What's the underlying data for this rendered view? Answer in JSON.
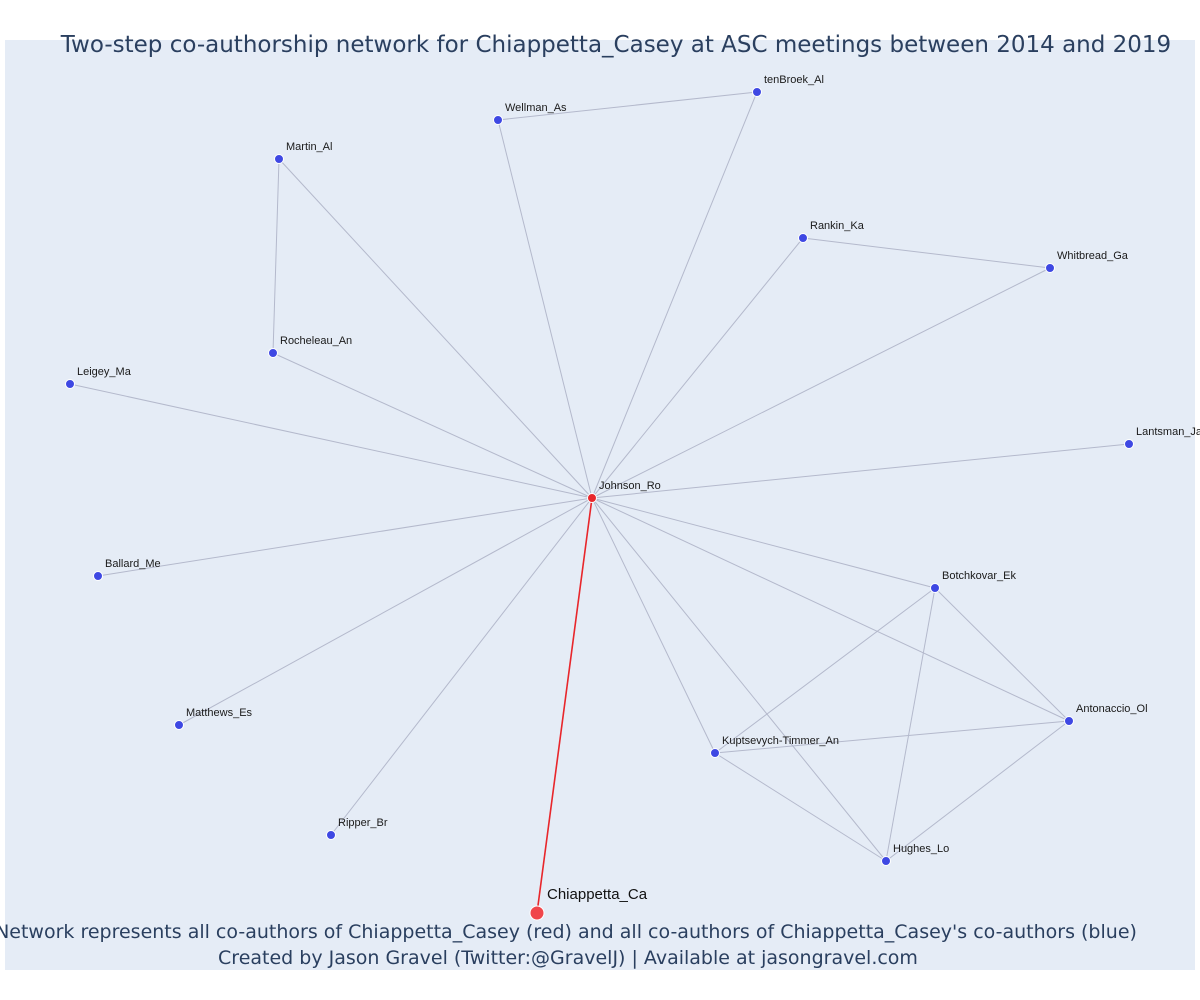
{
  "title": "Two-step co-authorship network for Chiappetta_Casey at ASC meetings between 2014 and 2019",
  "caption_line1": "Network represents all co-authors of Chiappetta_Casey (red) and all co-authors of Chiappetta_Casey's co-authors (blue)",
  "caption_line2": "Created by Jason Gravel (Twitter:@GravelJ) | Available at jasongravel.com",
  "colors": {
    "background": "#e5ecf6",
    "edge": "#b4b9cc",
    "focal_edge": "#e8262b",
    "focal_node": "#f0464b",
    "coauthor_node": "#e8262b",
    "secondary_node": "#3e48e3"
  },
  "nodes": [
    {
      "id": "Chiappetta_Ca",
      "label": "Chiappetta_Ca",
      "group": "focal"
    },
    {
      "id": "Johnson_Ro",
      "label": "Johnson_Ro",
      "group": "coauthor"
    },
    {
      "id": "tenBroek_Al",
      "label": "tenBroek_Al",
      "group": "secondary"
    },
    {
      "id": "Wellman_As",
      "label": "Wellman_As",
      "group": "secondary"
    },
    {
      "id": "Martin_Al",
      "label": "Martin_Al",
      "group": "secondary"
    },
    {
      "id": "Rankin_Ka",
      "label": "Rankin_Ka",
      "group": "secondary"
    },
    {
      "id": "Whitbread_Ga",
      "label": "Whitbread_Ga",
      "group": "secondary"
    },
    {
      "id": "Rocheleau_An",
      "label": "Rocheleau_An",
      "group": "secondary"
    },
    {
      "id": "Leigey_Ma",
      "label": "Leigey_Ma",
      "group": "secondary"
    },
    {
      "id": "Lantsman_Ja",
      "label": "Lantsman_Ja",
      "group": "secondary"
    },
    {
      "id": "Ballard_Me",
      "label": "Ballard_Me",
      "group": "secondary"
    },
    {
      "id": "Botchkovar_Ek",
      "label": "Botchkovar_Ek",
      "group": "secondary"
    },
    {
      "id": "Matthews_Es",
      "label": "Matthews_Es",
      "group": "secondary"
    },
    {
      "id": "Antonaccio_Ol",
      "label": "Antonaccio_Ol",
      "group": "secondary"
    },
    {
      "id": "Kuptsevych-Timmer_An",
      "label": "Kuptsevych-Timmer_An",
      "group": "secondary"
    },
    {
      "id": "Ripper_Br",
      "label": "Ripper_Br",
      "group": "secondary"
    },
    {
      "id": "Hughes_Lo",
      "label": "Hughes_Lo",
      "group": "secondary"
    }
  ],
  "edges": [
    {
      "source": "Chiappetta_Ca",
      "target": "Johnson_Ro",
      "focal": true
    },
    {
      "source": "Johnson_Ro",
      "target": "tenBroek_Al"
    },
    {
      "source": "Johnson_Ro",
      "target": "Wellman_As"
    },
    {
      "source": "Johnson_Ro",
      "target": "Martin_Al"
    },
    {
      "source": "Johnson_Ro",
      "target": "Rankin_Ka"
    },
    {
      "source": "Johnson_Ro",
      "target": "Whitbread_Ga"
    },
    {
      "source": "Johnson_Ro",
      "target": "Rocheleau_An"
    },
    {
      "source": "Johnson_Ro",
      "target": "Leigey_Ma"
    },
    {
      "source": "Johnson_Ro",
      "target": "Lantsman_Ja"
    },
    {
      "source": "Johnson_Ro",
      "target": "Ballard_Me"
    },
    {
      "source": "Johnson_Ro",
      "target": "Botchkovar_Ek"
    },
    {
      "source": "Johnson_Ro",
      "target": "Matthews_Es"
    },
    {
      "source": "Johnson_Ro",
      "target": "Antonaccio_Ol"
    },
    {
      "source": "Johnson_Ro",
      "target": "Kuptsevych-Timmer_An"
    },
    {
      "source": "Johnson_Ro",
      "target": "Ripper_Br"
    },
    {
      "source": "Johnson_Ro",
      "target": "Hughes_Lo"
    },
    {
      "source": "Wellman_As",
      "target": "tenBroek_Al"
    },
    {
      "source": "Martin_Al",
      "target": "Rocheleau_An"
    },
    {
      "source": "Rankin_Ka",
      "target": "Whitbread_Ga"
    },
    {
      "source": "Botchkovar_Ek",
      "target": "Antonaccio_Ol"
    },
    {
      "source": "Botchkovar_Ek",
      "target": "Kuptsevych-Timmer_An"
    },
    {
      "source": "Botchkovar_Ek",
      "target": "Hughes_Lo"
    },
    {
      "source": "Antonaccio_Ol",
      "target": "Kuptsevych-Timmer_An"
    },
    {
      "source": "Antonaccio_Ol",
      "target": "Hughes_Lo"
    },
    {
      "source": "Kuptsevych-Timmer_An",
      "target": "Hughes_Lo"
    }
  ]
}
